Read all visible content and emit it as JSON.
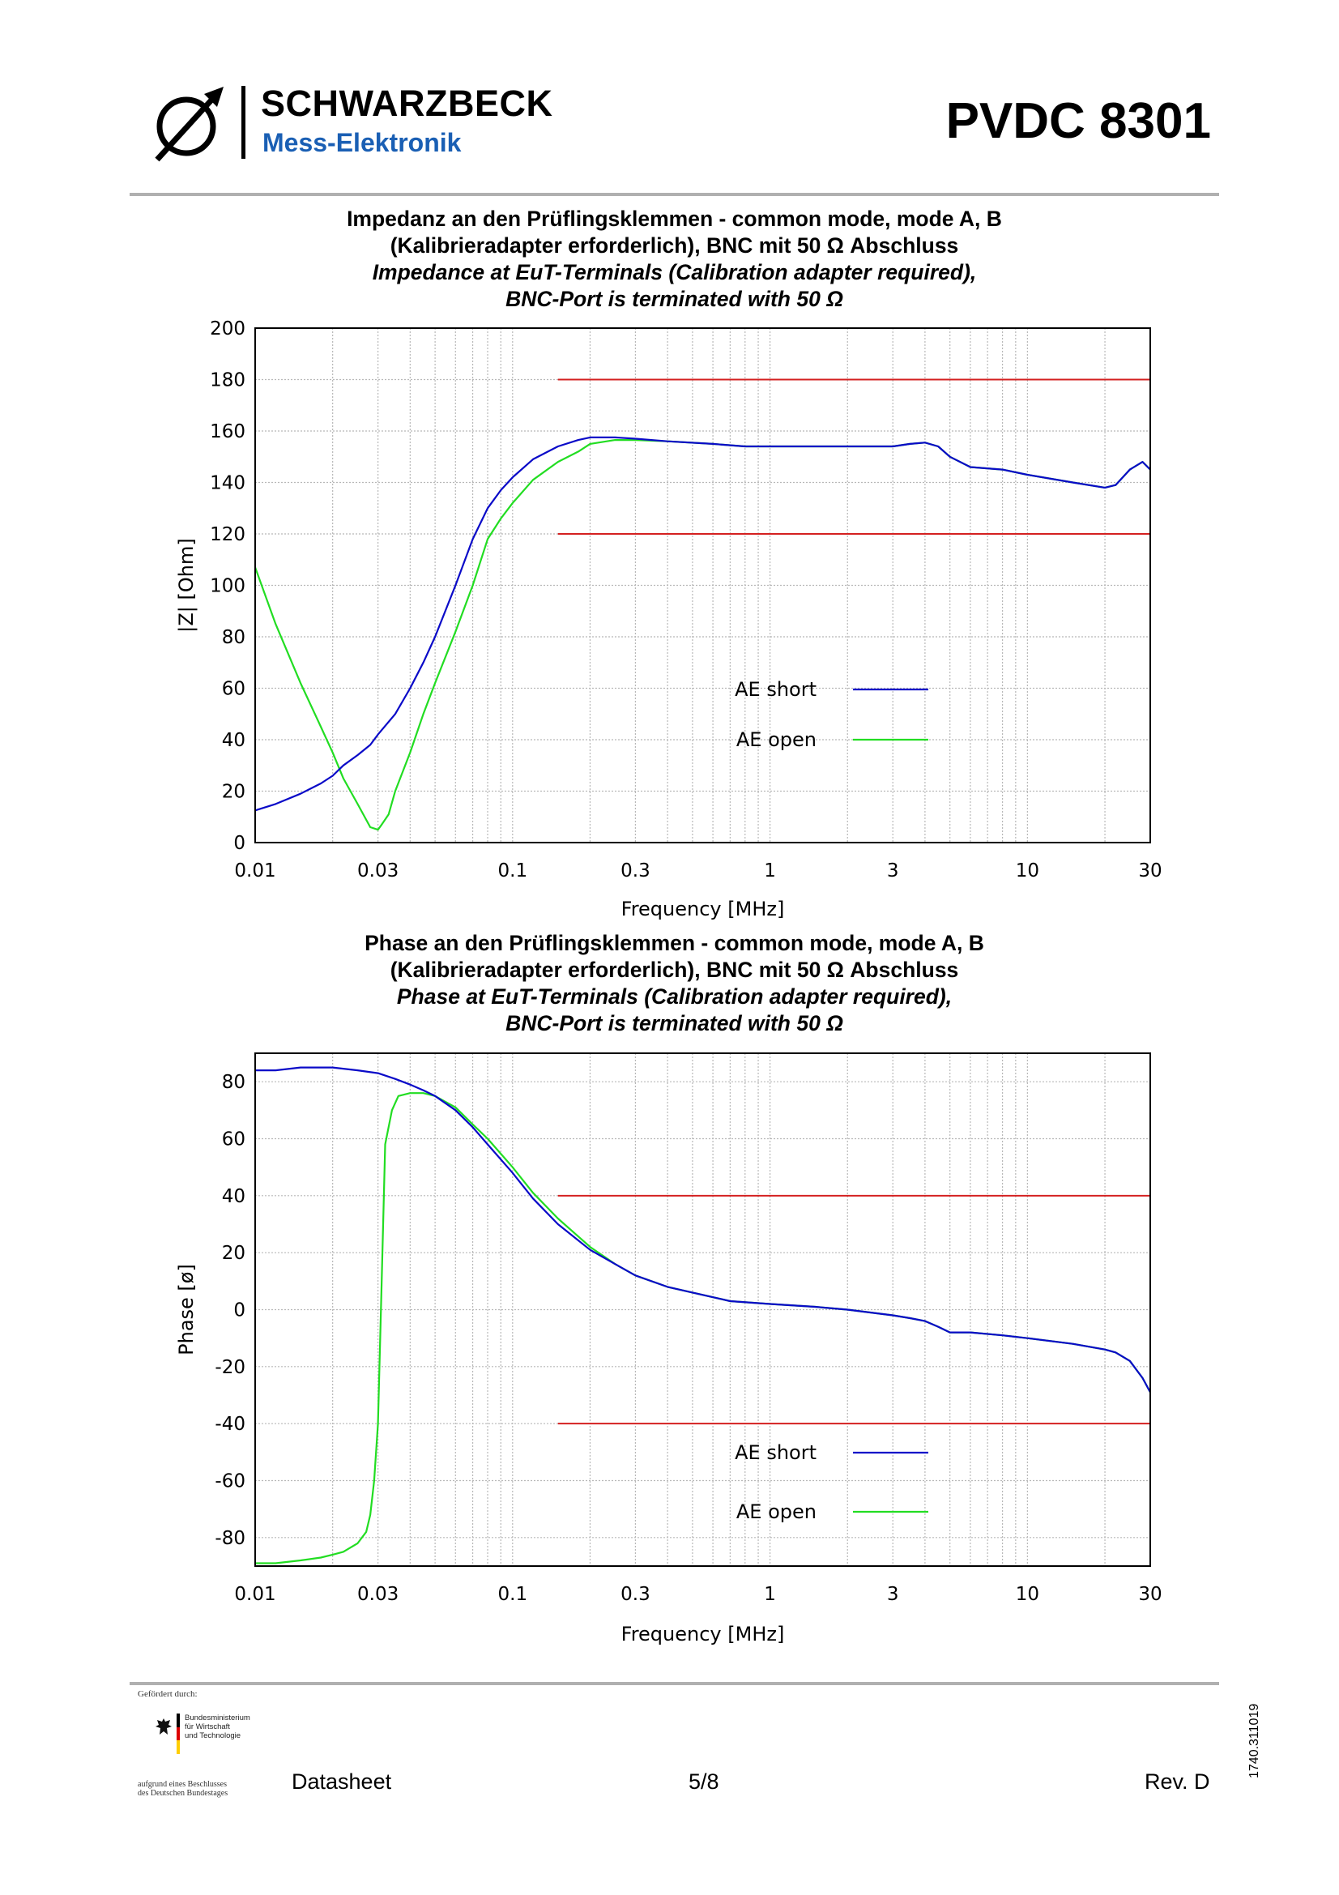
{
  "header": {
    "brand": "SCHWARZBECK",
    "brand_sub": "Mess-Elektronik",
    "model": "PVDC 8301"
  },
  "colors": {
    "ae_short": "#0a0ac8",
    "ae_open": "#22dd22",
    "limit": "#d42020",
    "brand_blue": "#1a5fb4"
  },
  "chart_data": [
    {
      "type": "line",
      "title_de_1": "Impedanz an den Prüflingsklemmen - common mode, mode A, B",
      "title_de_2": "(Kalibrieradapter erforderlich), BNC mit 50 Ω Abschluss",
      "title_en_1": "Impedance at EuT-Terminals (Calibration adapter required),",
      "title_en_2": "BNC-Port is terminated with 50 Ω",
      "xlabel": "Frequency [MHz]",
      "ylabel": "|Z| [Ohm]",
      "xscale": "log",
      "xlim": [
        0.01,
        30
      ],
      "ylim": [
        0,
        200
      ],
      "x_ticks": [
        0.01,
        0.03,
        0.1,
        0.3,
        1,
        3,
        10,
        30
      ],
      "x_tick_labels": [
        "0.01",
        "0.03",
        "0.1",
        "0.3",
        "1",
        "3",
        "10",
        "30"
      ],
      "y_ticks": [
        0,
        20,
        40,
        60,
        80,
        100,
        120,
        140,
        160,
        180,
        200
      ],
      "y_tick_labels": [
        "0",
        "20",
        "40",
        "60",
        "80",
        "100",
        "120",
        "140",
        "160",
        "180",
        "200"
      ],
      "grid": true,
      "legend_position": "center-right",
      "limits": [
        {
          "x": [
            0.15,
            30
          ],
          "y": 180
        },
        {
          "x": [
            0.15,
            30
          ],
          "y": 120
        }
      ],
      "series": [
        {
          "name": "AE short",
          "color_key": "ae_short",
          "x": [
            0.01,
            0.012,
            0.015,
            0.018,
            0.02,
            0.022,
            0.025,
            0.028,
            0.03,
            0.035,
            0.04,
            0.045,
            0.05,
            0.06,
            0.07,
            0.08,
            0.09,
            0.1,
            0.12,
            0.15,
            0.18,
            0.2,
            0.25,
            0.3,
            0.4,
            0.6,
            0.8,
            1,
            2,
            3,
            3.5,
            4,
            4.5,
            5,
            6,
            8,
            10,
            15,
            20,
            22,
            25,
            28,
            30
          ],
          "values": [
            12.5,
            15,
            19,
            23,
            26,
            30,
            34,
            38,
            42,
            50,
            60,
            70,
            80,
            100,
            118,
            130,
            137,
            142,
            149,
            154,
            156.5,
            157.5,
            157.5,
            157,
            156,
            155,
            154,
            154,
            154,
            154,
            155,
            155.5,
            154,
            150,
            146,
            145,
            143,
            140,
            138,
            139,
            145,
            148,
            145
          ]
        },
        {
          "name": "AE open",
          "color_key": "ae_open",
          "x": [
            0.01,
            0.012,
            0.015,
            0.018,
            0.02,
            0.022,
            0.025,
            0.028,
            0.03,
            0.031,
            0.033,
            0.035,
            0.04,
            0.045,
            0.05,
            0.06,
            0.07,
            0.08,
            0.09,
            0.1,
            0.12,
            0.15,
            0.18,
            0.2,
            0.25,
            0.3,
            0.4,
            0.6,
            0.8,
            1,
            2,
            3,
            3.5,
            4,
            4.5,
            5,
            6,
            8,
            10,
            15,
            20,
            22,
            25,
            28,
            30
          ],
          "values": [
            107,
            85,
            62,
            45,
            35,
            25,
            15,
            6,
            5,
            7,
            11,
            20,
            35,
            50,
            62,
            82,
            100,
            118,
            126,
            132,
            141,
            148,
            152,
            155,
            156.5,
            156.5,
            156,
            155,
            154,
            154,
            154,
            154,
            155,
            155.5,
            154,
            150,
            146,
            145,
            143,
            140,
            138,
            139,
            145,
            148,
            145
          ]
        }
      ]
    },
    {
      "type": "line",
      "title_de_1": "Phase an den Prüflingsklemmen - common mode, mode A, B",
      "title_de_2": "(Kalibrieradapter erforderlich), BNC mit 50 Ω Abschluss",
      "title_en_1": "Phase at EuT-Terminals (Calibration adapter required),",
      "title_en_2": "BNC-Port is terminated with 50 Ω",
      "xlabel": "Frequency [MHz]",
      "ylabel": "Phase [ø]",
      "xscale": "log",
      "xlim": [
        0.01,
        30
      ],
      "ylim": [
        -90,
        90
      ],
      "x_ticks": [
        0.01,
        0.03,
        0.1,
        0.3,
        1,
        3,
        10,
        30
      ],
      "x_tick_labels": [
        "0.01",
        "0.03",
        "0.1",
        "0.3",
        "1",
        "3",
        "10",
        "30"
      ],
      "y_ticks": [
        -80,
        -60,
        -40,
        -20,
        0,
        20,
        40,
        60,
        80
      ],
      "y_tick_labels": [
        "-80",
        "-60",
        "-40",
        "-20",
        "0",
        "20",
        "40",
        "60",
        "80"
      ],
      "grid": true,
      "legend_position": "bottom-right",
      "limits": [
        {
          "x": [
            0.15,
            30
          ],
          "y": 40
        },
        {
          "x": [
            0.15,
            30
          ],
          "y": -40
        }
      ],
      "series": [
        {
          "name": "AE short",
          "color_key": "ae_short",
          "x": [
            0.01,
            0.012,
            0.015,
            0.02,
            0.025,
            0.03,
            0.035,
            0.04,
            0.045,
            0.05,
            0.06,
            0.07,
            0.08,
            0.1,
            0.12,
            0.15,
            0.2,
            0.25,
            0.3,
            0.4,
            0.5,
            0.7,
            1,
            1.5,
            2,
            3,
            3.5,
            4,
            4.5,
            5,
            6,
            8,
            10,
            15,
            20,
            22,
            25,
            28,
            30
          ],
          "values": [
            84,
            84,
            85,
            85,
            84,
            83,
            81,
            79,
            77,
            75,
            70,
            64,
            58,
            48,
            39,
            30,
            21,
            16,
            12,
            8,
            6,
            3,
            2,
            1,
            0,
            -2,
            -3,
            -4,
            -6,
            -8,
            -8,
            -9,
            -10,
            -12,
            -14,
            -15,
            -18,
            -24,
            -29
          ]
        },
        {
          "name": "AE open",
          "color_key": "ae_open",
          "x": [
            0.01,
            0.012,
            0.015,
            0.018,
            0.02,
            0.022,
            0.025,
            0.027,
            0.028,
            0.029,
            0.03,
            0.031,
            0.032,
            0.034,
            0.036,
            0.04,
            0.045,
            0.05,
            0.06,
            0.07,
            0.08,
            0.1,
            0.12,
            0.15,
            0.2,
            0.25,
            0.3,
            0.4,
            0.5,
            0.7,
            1,
            1.5,
            2,
            3,
            3.5,
            4,
            4.5,
            5,
            6,
            8,
            10,
            15,
            20,
            22,
            25,
            28,
            30
          ],
          "values": [
            -89,
            -89,
            -88,
            -87,
            -86,
            -85,
            -82,
            -78,
            -72,
            -60,
            -40,
            10,
            58,
            70,
            75,
            76,
            76,
            75,
            71,
            65,
            60,
            50,
            41,
            32,
            22,
            16,
            12,
            8,
            6,
            3,
            2,
            1,
            0,
            -2,
            -3,
            -4,
            -6,
            -8,
            -8,
            -9,
            -10,
            -12,
            -14,
            -15,
            -18,
            -24,
            -29
          ]
        }
      ]
    }
  ],
  "footer": {
    "funded_by": "Gefördert durch:",
    "ministry": [
      "Bundesministerium",
      "für Wirtschaft",
      "und Technologie"
    ],
    "decision": [
      "aufgrund eines Beschlusses",
      "des Deutschen Bundestages"
    ],
    "doc_type": "Datasheet",
    "page": "5/8",
    "revision": "Rev. D",
    "doc_number": "1740.311019"
  }
}
